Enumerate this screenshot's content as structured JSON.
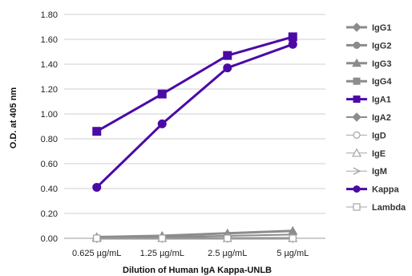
{
  "chart_data": {
    "type": "line",
    "title": "",
    "xlabel": "Dilution of Human IgA Kappa-UNLB",
    "ylabel": "O.D. at 405 nm",
    "categories": [
      "0.625 µg/mL",
      "1.25 µg/mL",
      "2.5 µg/mL",
      "5 µg/mL"
    ],
    "ylim": [
      0,
      1.8
    ],
    "yticks": [
      "0.00",
      "0.20",
      "0.40",
      "0.60",
      "0.80",
      "1.00",
      "1.20",
      "1.40",
      "1.60",
      "1.80"
    ],
    "grid": "horizontal",
    "legend_position": "right",
    "series": [
      {
        "name": "IgG1",
        "values": [
          0.0,
          0.0,
          0.0,
          0.0
        ],
        "color": "#8c8c8c",
        "marker": "diamond",
        "width": 3
      },
      {
        "name": "IgG2",
        "values": [
          0.0,
          0.0,
          0.0,
          0.0
        ],
        "color": "#8c8c8c",
        "marker": "circle",
        "width": 3
      },
      {
        "name": "IgG3",
        "values": [
          0.01,
          0.02,
          0.04,
          0.06
        ],
        "color": "#8c8c8c",
        "marker": "triangle",
        "width": 3
      },
      {
        "name": "IgG4",
        "values": [
          0.0,
          0.0,
          0.0,
          0.0
        ],
        "color": "#8c8c8c",
        "marker": "square",
        "width": 3
      },
      {
        "name": "IgA1",
        "values": [
          0.86,
          1.16,
          1.47,
          1.62
        ],
        "color": "#4b0aa5",
        "marker": "square",
        "width": 3
      },
      {
        "name": "IgA2",
        "values": [
          0.0,
          0.01,
          0.02,
          0.03
        ],
        "color": "#8c8c8c",
        "marker": "diamond",
        "width": 2
      },
      {
        "name": "IgD",
        "values": [
          0.0,
          0.0,
          0.0,
          0.0
        ],
        "color": "#a5a5a5",
        "marker": "circle-open",
        "width": 1
      },
      {
        "name": "IgE",
        "values": [
          0.0,
          0.0,
          0.0,
          0.0
        ],
        "color": "#a5a5a5",
        "marker": "triangle-open",
        "width": 1
      },
      {
        "name": "IgM",
        "values": [
          0.0,
          0.0,
          0.0,
          0.0
        ],
        "color": "#a5a5a5",
        "marker": "arrow",
        "width": 1
      },
      {
        "name": "Kappa",
        "values": [
          0.41,
          0.92,
          1.37,
          1.56
        ],
        "color": "#4b0aa5",
        "marker": "circle",
        "width": 3
      },
      {
        "name": "Lambda",
        "values": [
          0.0,
          0.0,
          0.0,
          0.0
        ],
        "color": "#a5a5a5",
        "marker": "square-open",
        "width": 1
      }
    ]
  }
}
